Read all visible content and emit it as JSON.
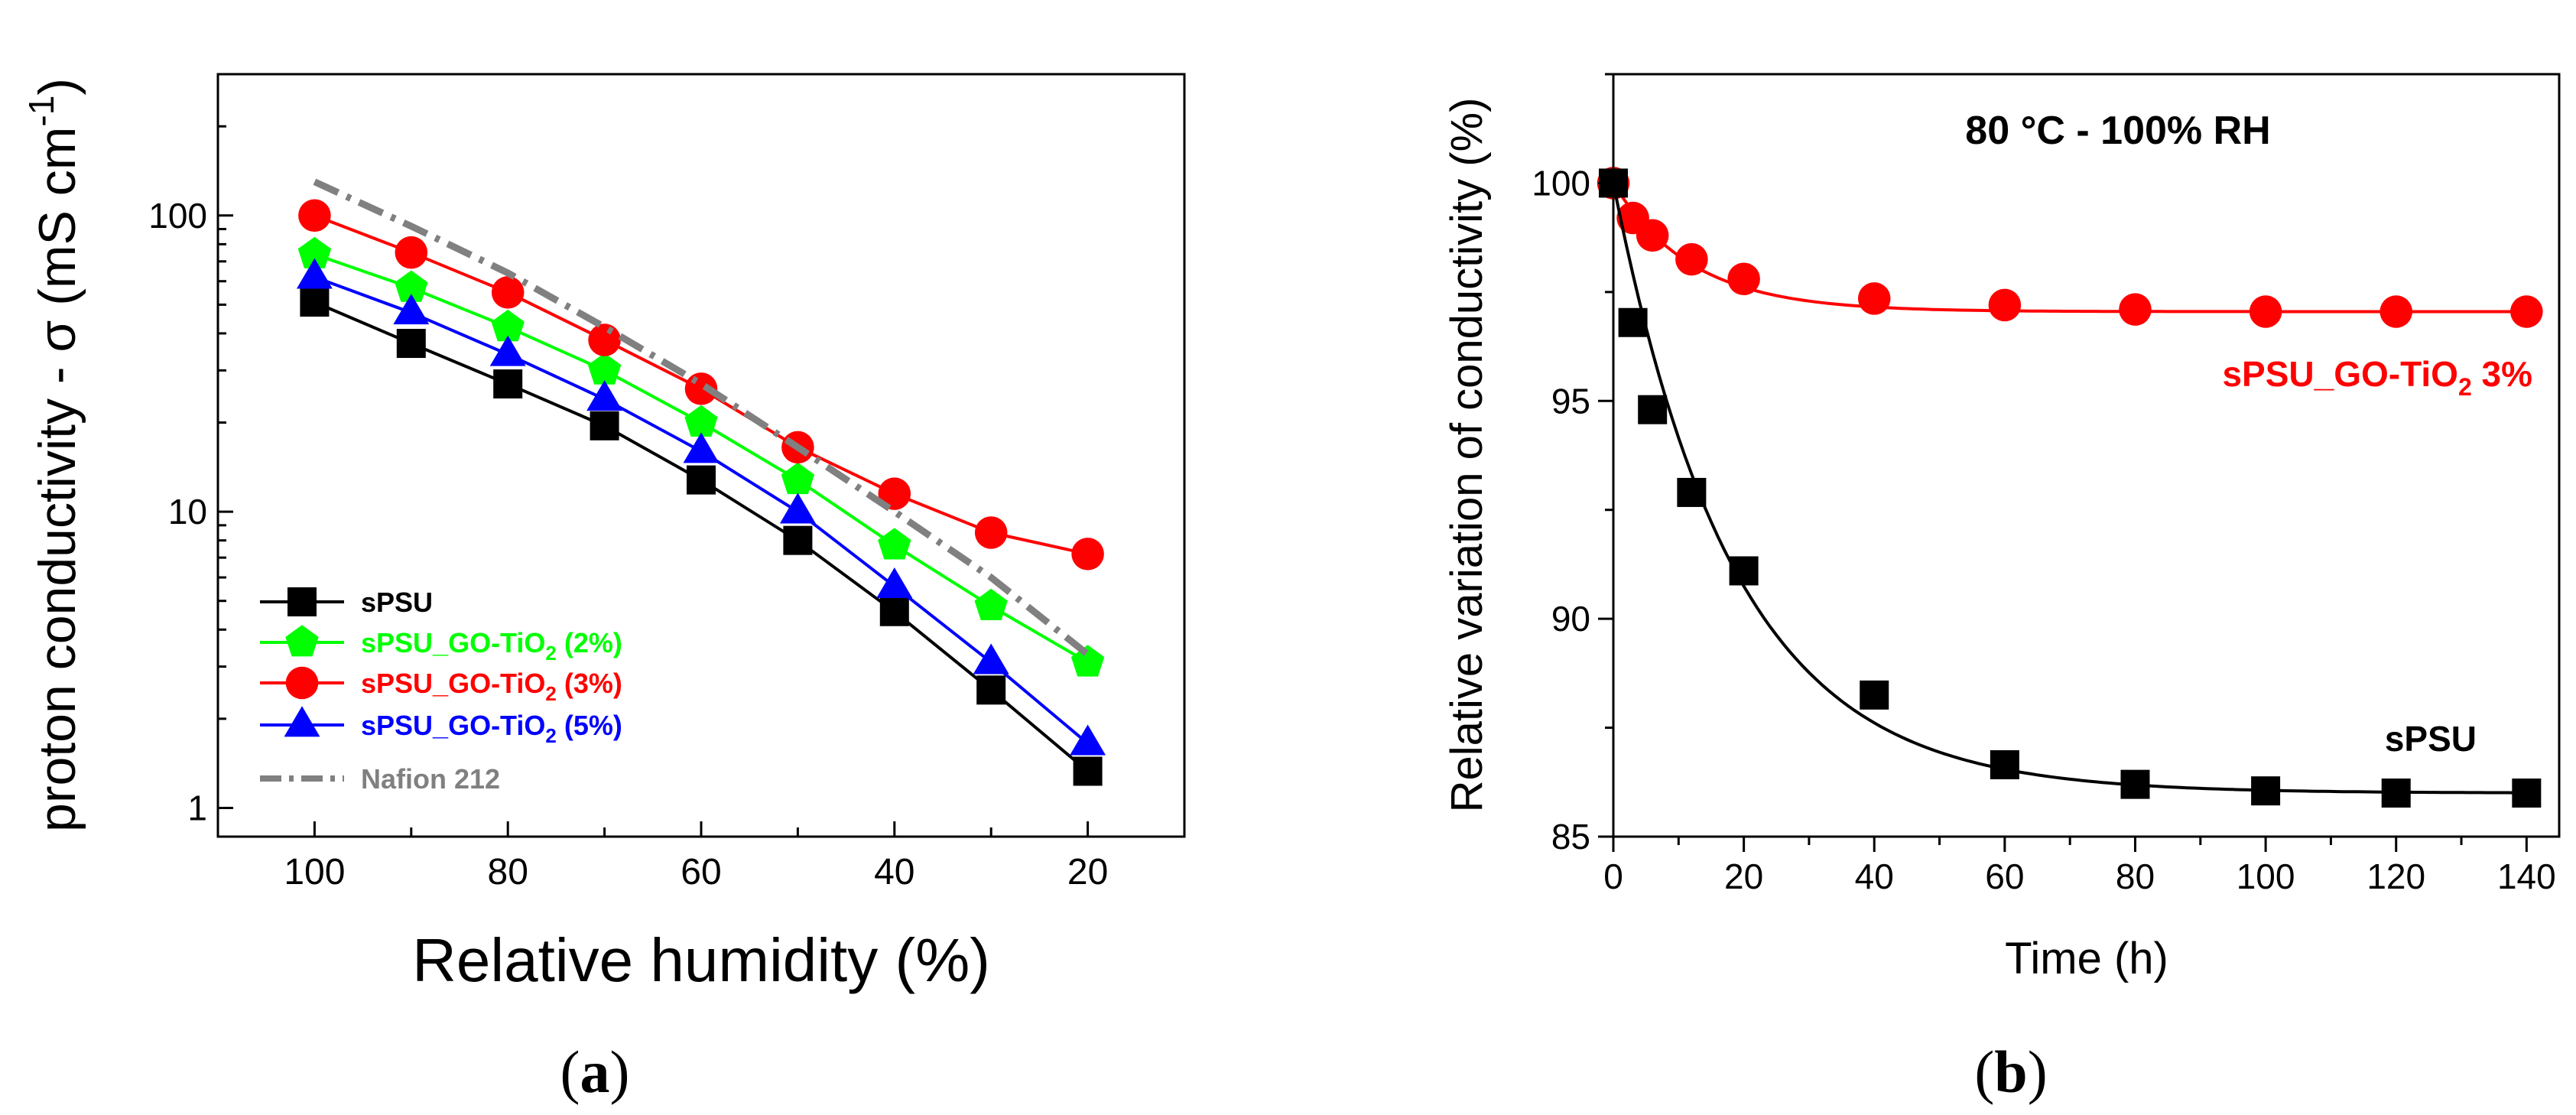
{
  "chart_data": [
    {
      "id": "a",
      "type": "line",
      "panel_label": "(a)",
      "panel_letter": "a",
      "title": "",
      "xlabel": "Relative humidity (%)",
      "ylabel": "proton conductivity - σ (mS cm",
      "ylabel_sup": "-1",
      "ylabel_close": ")",
      "xscale": "linear",
      "xreversed": true,
      "xlim": [
        110,
        10
      ],
      "xticks": [
        100,
        80,
        60,
        40,
        20
      ],
      "xtick_labels": [
        "100",
        "80",
        "60",
        "40",
        "20"
      ],
      "yscale": "log",
      "ylim": [
        0.8,
        300
      ],
      "yticks": [
        1,
        10,
        100
      ],
      "ytick_labels": [
        "1",
        "10",
        "100"
      ],
      "legend_position": "bottom-left",
      "x": [
        100,
        90,
        80,
        70,
        60,
        50,
        40,
        30,
        20
      ],
      "series": [
        {
          "name": "sPSU",
          "label_main": "sPSU",
          "color": "#000000",
          "marker": "square",
          "line": "solid",
          "values": [
            51,
            37,
            27,
            19.5,
            12.8,
            8.0,
            4.6,
            2.5,
            1.33
          ]
        },
        {
          "name": "sPSU_GO-TiO2 (2%)",
          "label_main": "sPSU_GO-TiO",
          "label_sub": "2",
          "label_tail": " (2%)",
          "color": "#00ff00",
          "marker": "pentagon",
          "line": "solid",
          "values": [
            74,
            57,
            42,
            30,
            20,
            12.8,
            7.7,
            4.8,
            3.1
          ]
        },
        {
          "name": "sPSU_GO-TiO2 (3%)",
          "label_main": "sPSU_GO-TiO",
          "label_sub": "2",
          "label_tail": " (3%)",
          "color": "#ff0000",
          "marker": "circle",
          "line": "solid",
          "values": [
            100,
            75,
            55,
            38,
            26,
            16.5,
            11.5,
            8.5,
            7.2
          ]
        },
        {
          "name": "sPSU_GO-TiO2 (5%)",
          "label_main": "sPSU_GO-TiO",
          "label_sub": "2",
          "label_tail": " (5%)",
          "color": "#0000ff",
          "marker": "triangle",
          "line": "solid",
          "values": [
            62,
            47,
            34,
            24,
            16,
            10,
            5.6,
            3.1,
            1.65
          ]
        },
        {
          "name": "Nafion 212",
          "label_main": "Nafion 212",
          "color": "#808080",
          "marker": "none",
          "line": "dashdot",
          "values": [
            130,
            92,
            64,
            42,
            27,
            16.5,
            10,
            6,
            3.3
          ]
        }
      ]
    },
    {
      "id": "b",
      "type": "line",
      "panel_label": "(b)",
      "panel_letter": "b",
      "title": "80 °C - 100% RH",
      "xlabel": "Time (h)",
      "ylabel": "Relative variation of conductivity (%)",
      "xscale": "linear",
      "xlim": [
        0,
        145
      ],
      "xticks": [
        0,
        20,
        40,
        60,
        80,
        100,
        120,
        140
      ],
      "xtick_labels": [
        "0",
        "20",
        "40",
        "60",
        "80",
        "100",
        "120",
        "140"
      ],
      "yscale": "linear",
      "ylim": [
        85,
        102.5
      ],
      "yticks": [
        85,
        90,
        95,
        100
      ],
      "ytick_labels": [
        "85",
        "90",
        "95",
        "100"
      ],
      "x": [
        0,
        3,
        6,
        12,
        20,
        40,
        60,
        80,
        100,
        120,
        140
      ],
      "series": [
        {
          "name": "sPSU_GO-TiO2 3%",
          "label_main": "sPSU_GO-TiO",
          "label_sub": "2",
          "label_tail": " 3%",
          "color": "#ff0000",
          "marker": "circle",
          "values": [
            100,
            99.2,
            98.8,
            98.25,
            97.8,
            97.35,
            97.2,
            97.1,
            97.05,
            97.05,
            97.05
          ],
          "fit": {
            "model": "exp_decay",
            "plateau": 97.05,
            "amplitude": 2.95,
            "tau": 12
          }
        },
        {
          "name": "sPSU",
          "label_main": "sPSU",
          "color": "#000000",
          "marker": "square",
          "values": [
            100,
            96.8,
            94.8,
            92.9,
            91.1,
            88.25,
            86.65,
            86.2,
            86.05,
            86.0,
            86.0
          ],
          "fit": {
            "model": "exp_decay",
            "plateau": 86.0,
            "amplitude": 14.0,
            "tau": 18.5
          }
        }
      ]
    }
  ]
}
